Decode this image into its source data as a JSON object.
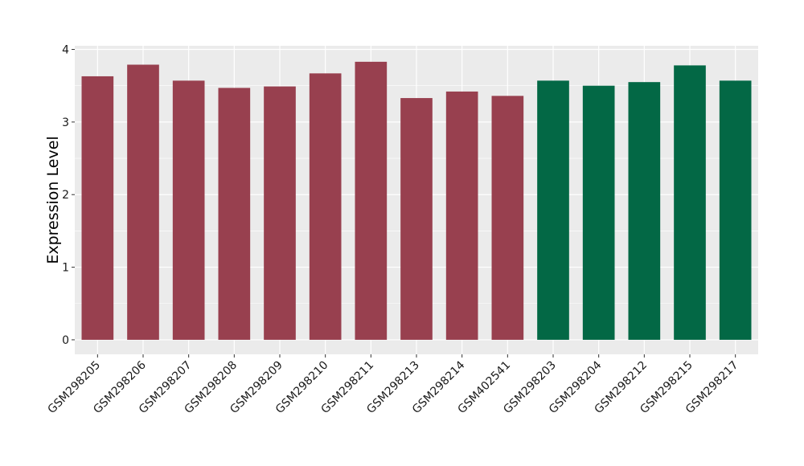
{
  "chart_data": {
    "type": "bar",
    "ylabel": "Expression Level",
    "xlabel": "",
    "title": "",
    "ylim": [
      -0.2,
      4.05
    ],
    "yticks": [
      0,
      1,
      2,
      3,
      4
    ],
    "grid": true,
    "legend": "none",
    "categories": [
      "GSM298205",
      "GSM298206",
      "GSM298207",
      "GSM298208",
      "GSM298209",
      "GSM298210",
      "GSM298211",
      "GSM298213",
      "GSM298214",
      "GSM402541",
      "GSM298203",
      "GSM298204",
      "GSM298212",
      "GSM298215",
      "GSM298217"
    ],
    "values": [
      3.63,
      3.79,
      3.57,
      3.47,
      3.49,
      3.67,
      3.83,
      3.33,
      3.42,
      3.36,
      3.57,
      3.5,
      3.55,
      3.78,
      3.57
    ],
    "groups": [
      0,
      0,
      0,
      0,
      0,
      0,
      0,
      0,
      0,
      0,
      1,
      1,
      1,
      1,
      1
    ],
    "colors": [
      "#98404f",
      "#036845"
    ],
    "panel_background": "#ebebeb"
  }
}
